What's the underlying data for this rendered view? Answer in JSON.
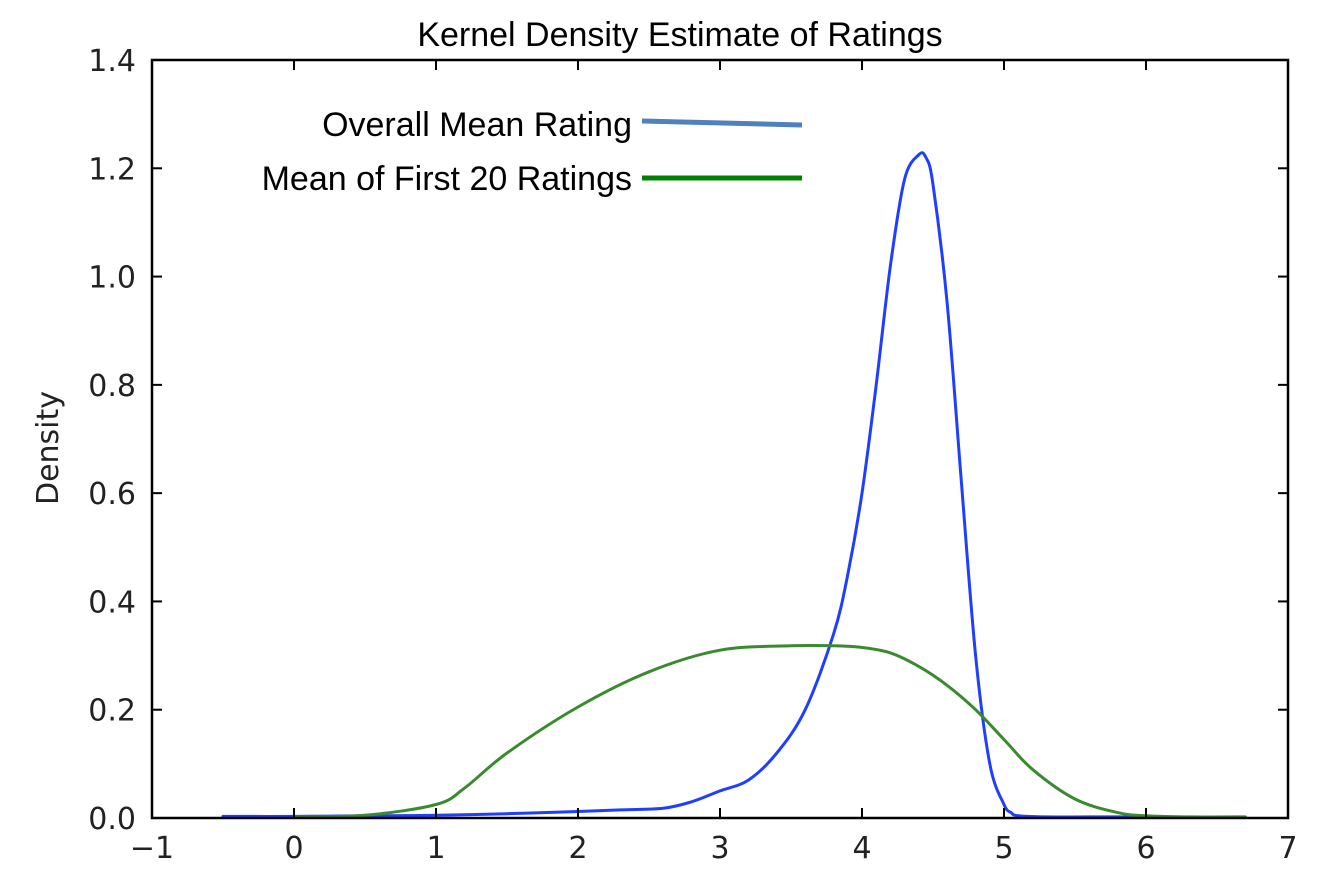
{
  "chart_data": {
    "type": "line",
    "title": "Kernel Density Estimate of Ratings",
    "xlabel": "",
    "ylabel": "Density",
    "xlim": [
      -1,
      7
    ],
    "ylim": [
      0,
      1.4
    ],
    "xticks": [
      -1,
      0,
      1,
      2,
      3,
      4,
      5,
      6,
      7
    ],
    "yticks": [
      0.0,
      0.2,
      0.4,
      0.6,
      0.8,
      1.0,
      1.2,
      1.4
    ],
    "xtick_labels": [
      "−1",
      "0",
      "1",
      "2",
      "3",
      "4",
      "5",
      "6",
      "7"
    ],
    "ytick_labels": [
      "0.0",
      "0.2",
      "0.4",
      "0.6",
      "0.8",
      "1.0",
      "1.2",
      "1.4"
    ],
    "grid": false,
    "legend_position": "top-left",
    "series": [
      {
        "name": "Overall Mean Rating",
        "color": "#1f3fff",
        "legend_color": "#4f81bd",
        "x": [
          -0.5,
          0,
          0.5,
          1.0,
          1.5,
          2.0,
          2.3,
          2.6,
          2.8,
          3.0,
          3.2,
          3.4,
          3.6,
          3.8,
          3.9,
          4.0,
          4.1,
          4.2,
          4.3,
          4.4,
          4.45,
          4.5,
          4.6,
          4.7,
          4.8,
          4.9,
          5.0,
          5.05,
          5.1,
          5.3,
          5.6,
          6.0
        ],
        "y": [
          0.003,
          0.003,
          0.004,
          0.005,
          0.008,
          0.012,
          0.015,
          0.018,
          0.03,
          0.05,
          0.07,
          0.12,
          0.2,
          0.34,
          0.45,
          0.6,
          0.8,
          1.02,
          1.18,
          1.225,
          1.22,
          1.17,
          0.95,
          0.62,
          0.3,
          0.1,
          0.025,
          0.01,
          0.004,
          0.002,
          0.002,
          0.002
        ]
      },
      {
        "name": "Mean of First 20 Ratings",
        "color": "#3a8a2e",
        "legend_color": "#008000",
        "x": [
          0,
          0.5,
          1.0,
          1.2,
          1.5,
          2.0,
          2.5,
          3.0,
          3.5,
          3.8,
          4.0,
          4.2,
          4.4,
          4.6,
          4.8,
          5.0,
          5.2,
          5.5,
          5.8,
          6.0,
          6.3,
          6.7
        ],
        "y": [
          0.002,
          0.005,
          0.025,
          0.055,
          0.12,
          0.205,
          0.27,
          0.31,
          0.318,
          0.318,
          0.315,
          0.305,
          0.28,
          0.245,
          0.2,
          0.145,
          0.09,
          0.035,
          0.01,
          0.004,
          0.002,
          0.002
        ]
      }
    ]
  }
}
